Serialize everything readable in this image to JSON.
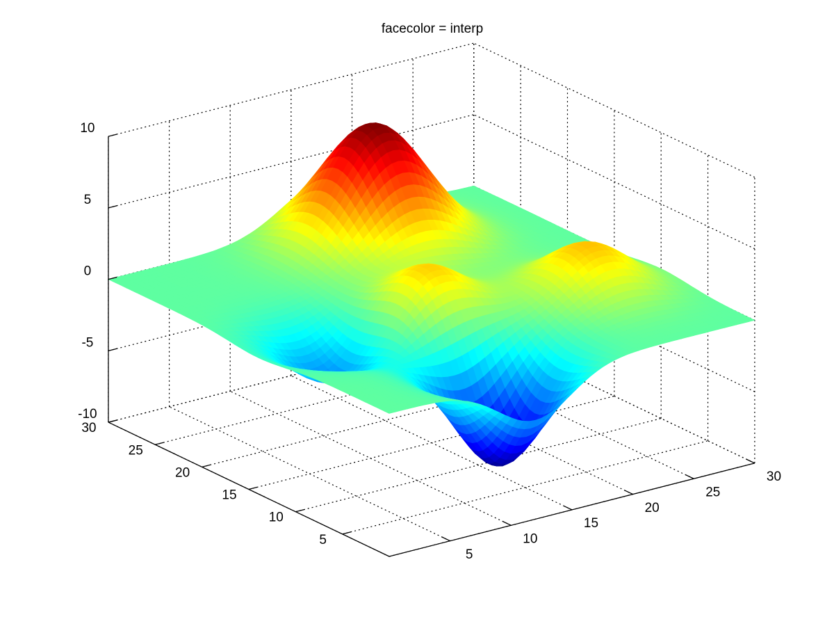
{
  "chart_data": {
    "type": "surface",
    "title": "facecolor = interp",
    "xlabel": "",
    "ylabel": "",
    "zlabel": "",
    "xlim": [
      0,
      30
    ],
    "ylim": [
      0,
      30
    ],
    "zlim": [
      -10,
      10
    ],
    "x_ticks": [
      5,
      10,
      15,
      20,
      25,
      30
    ],
    "y_ticks": [
      5,
      10,
      15,
      20,
      25,
      30
    ],
    "z_ticks": [
      -10,
      -5,
      0,
      5,
      10
    ],
    "x_tick_labels": [
      "5",
      "10",
      "15",
      "20",
      "25",
      "30"
    ],
    "y_tick_labels": [
      "5",
      "10",
      "15",
      "20",
      "25",
      "30"
    ],
    "z_tick_labels": [
      "-10",
      "-5",
      "0",
      "5",
      "10"
    ],
    "grid": true,
    "shading": "interp",
    "colormap": "jet",
    "grid_size": [
      30,
      30
    ],
    "components": [
      {
        "kind": "peak",
        "x": 18,
        "y": 25,
        "height": 8.5
      },
      {
        "kind": "peak",
        "x": 24,
        "y": 10,
        "height": 3.5
      },
      {
        "kind": "peak",
        "x": 13,
        "y": 13,
        "height": 3.5
      },
      {
        "kind": "trough",
        "x": 6,
        "y": 14,
        "height": -3.5
      },
      {
        "kind": "trough",
        "x": 12,
        "y": 4,
        "height": -7.5
      }
    ]
  }
}
